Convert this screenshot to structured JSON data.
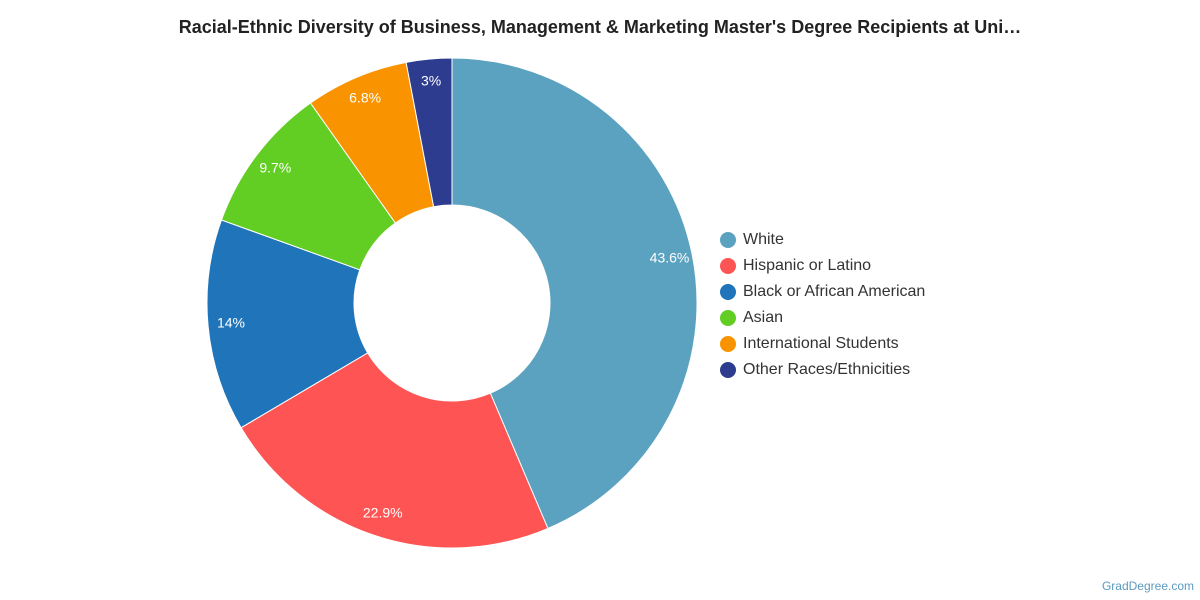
{
  "header": {
    "title": "Racial-Ethnic Diversity of Business, Management & Marketing Master's Degree Recipients at Uni…"
  },
  "credit": "GradDegree.com",
  "chart_data": {
    "type": "pie",
    "donut": true,
    "legend_position": "right",
    "categories": [
      "White",
      "Hispanic or Latino",
      "Black or African American",
      "Asian",
      "International Students",
      "Other Races/Ethnicities"
    ],
    "values": [
      43.6,
      22.9,
      14,
      9.7,
      6.8,
      3
    ],
    "labels": [
      "43.6%",
      "22.9%",
      "14%",
      "9.7%",
      "6.8%",
      "3%"
    ],
    "colors": [
      "#5ba2c0",
      "#fe5454",
      "#1f74ba",
      "#62cd23",
      "#f99400",
      "#2d3c8f"
    ]
  }
}
